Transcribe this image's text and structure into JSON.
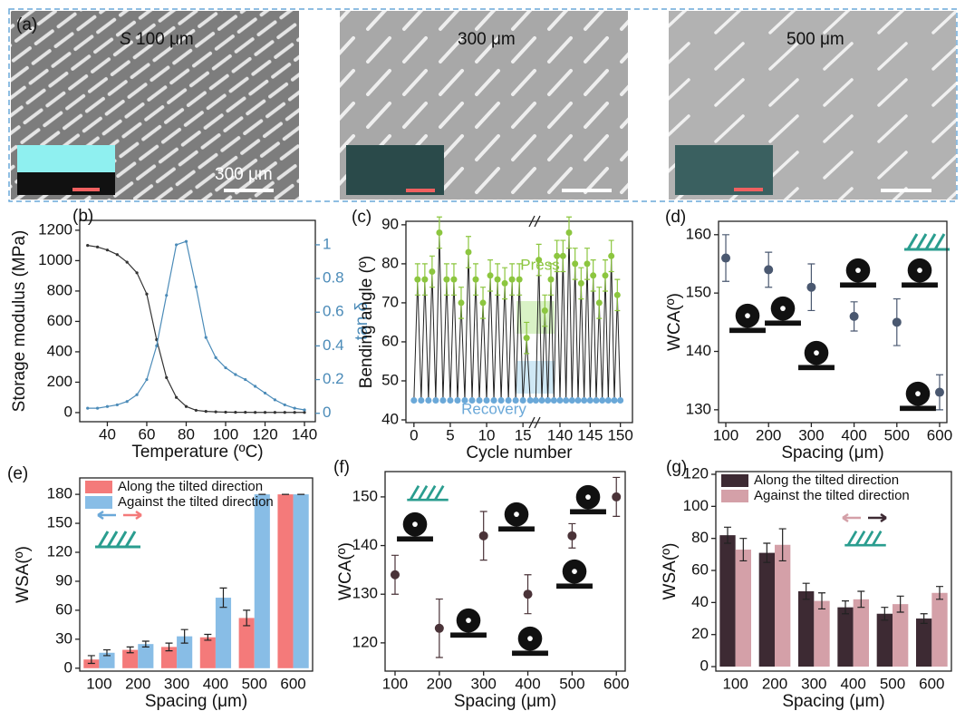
{
  "panel_a": {
    "label": "(a)",
    "images": [
      {
        "caption_var": "S",
        "caption": "100 μm"
      },
      {
        "caption": "300 μm"
      },
      {
        "caption": "500 μm"
      }
    ],
    "scale_bar": "300 μm"
  },
  "chart_data": [
    {
      "type": "line",
      "label": "(b)",
      "x_label": "Temperature (ºC)",
      "y_label": "Storage modulus (MPa)",
      "y2_label": "tan δ",
      "x": [
        30,
        35,
        40,
        45,
        50,
        55,
        60,
        65,
        70,
        75,
        80,
        85,
        90,
        95,
        100,
        105,
        110,
        115,
        120,
        125,
        130,
        135,
        140
      ],
      "series": [
        {
          "color": "#333333",
          "axis": "y",
          "values": [
            1100,
            1090,
            1070,
            1040,
            990,
            920,
            780,
            480,
            230,
            100,
            40,
            15,
            8,
            5,
            3,
            2,
            2,
            1,
            1,
            1,
            1,
            1,
            1
          ]
        },
        {
          "color": "#4b8bb8",
          "axis": "y2",
          "values": [
            0.03,
            0.03,
            0.04,
            0.05,
            0.07,
            0.11,
            0.2,
            0.4,
            0.7,
            1.0,
            1.02,
            0.75,
            0.45,
            0.33,
            0.27,
            0.23,
            0.2,
            0.16,
            0.12,
            0.08,
            0.05,
            0.03,
            0.02
          ]
        }
      ],
      "xlim": [
        26,
        145.5
      ],
      "xticks": [
        40,
        60,
        80,
        100,
        120,
        140
      ],
      "ylim": [
        -60,
        1265
      ],
      "yticks": [
        0,
        200,
        400,
        600,
        800,
        1000,
        1200
      ],
      "y2lim": [
        -0.05,
        1.145
      ],
      "y2ticks": [
        0,
        0.2,
        0.4,
        0.6,
        0.8,
        1
      ]
    },
    {
      "type": "line",
      "label": "(c)",
      "x_label": "Cycle number",
      "y_label": "Bending angle (º)",
      "line_color": "#222222",
      "series": [
        {
          "name": "Press",
          "color": "#8cc63f",
          "x": [
            0.5,
            1.5,
            2.5,
            3.5,
            4.5,
            5.5,
            6.5,
            7.5,
            8.5,
            9.5,
            10.5,
            11.5,
            12.5,
            13.5,
            14.5,
            15.5,
            136.5,
            137.5,
            138.5,
            139.5,
            140.5,
            141.5,
            142.5,
            143.5,
            144.5,
            145.5,
            146.5,
            147.5,
            148.5,
            149.5
          ],
          "values": [
            76,
            76,
            78,
            88,
            76,
            76,
            70,
            83,
            76,
            70,
            77,
            76,
            75,
            76,
            76,
            61,
            81,
            68,
            76,
            82,
            82,
            88,
            80,
            75,
            80,
            77,
            70,
            77,
            82,
            72
          ],
          "errors": [
            4,
            4,
            4,
            4,
            4,
            4,
            4,
            4,
            4,
            4,
            4,
            4,
            4,
            4,
            4,
            4,
            4,
            4,
            4,
            4,
            4,
            4,
            4,
            4,
            4,
            4,
            4,
            4,
            4,
            4
          ]
        },
        {
          "name": "Recovery",
          "color": "#6aa8d8",
          "x": [
            0,
            1,
            2,
            3,
            4,
            5,
            6,
            7,
            8,
            9,
            10,
            11,
            12,
            13,
            14,
            15,
            16,
            136,
            137,
            138,
            139,
            140,
            141,
            142,
            143,
            144,
            145,
            146,
            147,
            148,
            149,
            150
          ],
          "values": [
            45,
            45,
            45,
            45,
            45,
            45,
            45,
            45,
            45,
            45,
            45,
            45,
            45,
            45,
            45,
            45,
            45,
            45,
            45,
            45,
            45,
            45,
            45,
            45,
            45,
            45,
            45,
            45,
            45,
            45,
            45,
            45
          ]
        }
      ],
      "xlim": [
        [
          -1.1,
          16.6
        ],
        [
          135.8,
          152
        ]
      ],
      "xticks": [
        0,
        5,
        10,
        15,
        140,
        145,
        150
      ],
      "ylim": [
        39.3,
        90.9
      ],
      "yticks": [
        40,
        50,
        60,
        70,
        80,
        90
      ]
    },
    {
      "type": "scatter",
      "label": "(d)",
      "x_label": "Spacing (μm)",
      "y_label": "WCA(º)",
      "color": "#4a5870",
      "x": [
        100,
        200,
        300,
        400,
        500,
        600
      ],
      "values": [
        156,
        154,
        151,
        146,
        145,
        133
      ],
      "errors": [
        4,
        3,
        4,
        2.5,
        4,
        3
      ],
      "xlim": [
        83,
        617
      ],
      "xticks": [
        100,
        200,
        300,
        400,
        500,
        600
      ],
      "ylim": [
        127.8,
        162.3
      ],
      "yticks": [
        130,
        140,
        150,
        160
      ]
    },
    {
      "type": "bar",
      "label": "(e)",
      "x_label": "Spacing (μm)",
      "y_label": "WSA(º)",
      "legend": "top-left",
      "categories": [
        "100",
        "200",
        "300",
        "400",
        "500",
        "600"
      ],
      "series": [
        {
          "name": "Along the tilted direction",
          "color": "#f47a7a",
          "values": [
            9,
            19,
            22,
            32,
            52,
            180
          ],
          "errors": [
            4,
            3,
            4,
            3,
            8,
            0
          ]
        },
        {
          "name": "Against the tilted direction",
          "color": "#88bde6",
          "values": [
            16,
            25,
            33,
            73,
            180,
            180
          ],
          "errors": [
            3,
            3,
            7,
            10,
            0,
            0
          ]
        }
      ],
      "ylim": [
        -3,
        197
      ],
      "yticks": [
        0,
        30,
        60,
        90,
        120,
        150,
        180
      ]
    },
    {
      "type": "scatter",
      "label": "(f)",
      "x_label": "Spacing (μm)",
      "y_label": "WCA(º)",
      "color": "#4a3338",
      "x": [
        100,
        200,
        300,
        400,
        500,
        600
      ],
      "values": [
        134,
        123,
        142,
        130,
        142,
        150
      ],
      "errors": [
        4,
        6,
        5,
        4,
        2.5,
        4
      ],
      "xlim": [
        77.5,
        620
      ],
      "xticks": [
        100,
        200,
        300,
        400,
        500,
        600
      ],
      "ylim": [
        114.2,
        155.2
      ],
      "yticks": [
        120,
        130,
        140,
        150
      ]
    },
    {
      "type": "bar",
      "label": "(g)",
      "x_label": "Spacing (μm)",
      "y_label": "WSA(º)",
      "legend": "top-left",
      "categories": [
        "100",
        "200",
        "300",
        "400",
        "500",
        "600"
      ],
      "series": [
        {
          "name": "Along the tilted direction",
          "color": "#3d2a33",
          "values": [
            82,
            71,
            47,
            37,
            33,
            30
          ],
          "errors": [
            5,
            6,
            5,
            4,
            4,
            3
          ]
        },
        {
          "name": "Against the tilted direction",
          "color": "#d4a0a8",
          "values": [
            73,
            76,
            41,
            42,
            39,
            46
          ],
          "errors": [
            7,
            10,
            5,
            5,
            5,
            4
          ]
        }
      ],
      "ylim": [
        -2.8,
        121.7
      ],
      "yticks": [
        0,
        20,
        40,
        60,
        80,
        100,
        120
      ]
    }
  ]
}
